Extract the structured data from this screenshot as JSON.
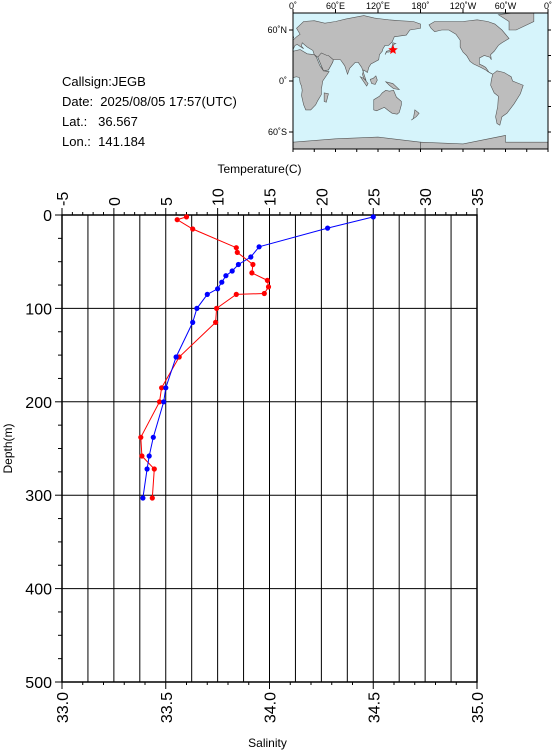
{
  "info": {
    "callsign": "Callsign:JEGB",
    "date": "Date:  2025/08/05 17:57(UTC)",
    "lat": "Lat.:   36.567",
    "lon": "Lon.:  141.184"
  },
  "map": {
    "top_labels": [
      "0˚",
      "60˚E",
      "120˚E",
      "180˚",
      "120˚W",
      "60˚W",
      "0˚"
    ],
    "left_labels": [
      "60˚N",
      "0˚",
      "60˚S"
    ],
    "ocean_color": "#d6f4fb",
    "land_color": "#bdbdbd",
    "marker": {
      "lat": 36.567,
      "lon": 141.184,
      "color": "#ff0000",
      "icon": "star-icon"
    }
  },
  "chart_data": {
    "type": "line",
    "ylabel": "Depth(m)",
    "temp_label": "Temperature(C)",
    "sal_label": "Salinity",
    "ylim": [
      0,
      500
    ],
    "temp_range": [
      -5,
      35
    ],
    "sal_range": [
      33.0,
      35.0
    ],
    "y_ticks": [
      "0",
      "100",
      "200",
      "300",
      "400",
      "500"
    ],
    "temp_ticks": [
      "-5",
      "0",
      "5",
      "10",
      "15",
      "20",
      "25",
      "30",
      "35"
    ],
    "sal_ticks": [
      "33.0",
      "33.5",
      "34.0",
      "34.5",
      "35.0"
    ],
    "grid": true,
    "temp_color": "#ff0000",
    "sal_color": "#0000ff",
    "series": [
      {
        "quantity": "temperature",
        "depth": [
          2,
          5,
          15,
          35,
          40,
          53,
          62,
          70,
          77,
          84,
          85,
          100,
          115,
          152,
          185,
          200,
          238,
          258,
          272,
          303
        ],
        "values": [
          7.0,
          6.1,
          7.6,
          11.8,
          11.9,
          13.4,
          13.3,
          14.8,
          14.9,
          14.5,
          11.8,
          9.9,
          9.8,
          6.3,
          4.6,
          4.4,
          2.6,
          2.7,
          3.9,
          3.7
        ]
      },
      {
        "quantity": "salinity",
        "depth": [
          2,
          14,
          34,
          45,
          53,
          60,
          65,
          72,
          79,
          85,
          100,
          115,
          152,
          185,
          200,
          238,
          258,
          272,
          303
        ],
        "values": [
          34.5,
          34.28,
          33.95,
          33.91,
          33.85,
          33.82,
          33.79,
          33.77,
          33.75,
          33.7,
          33.65,
          33.63,
          33.55,
          33.5,
          33.49,
          33.44,
          33.42,
          33.41,
          33.39
        ]
      }
    ]
  }
}
